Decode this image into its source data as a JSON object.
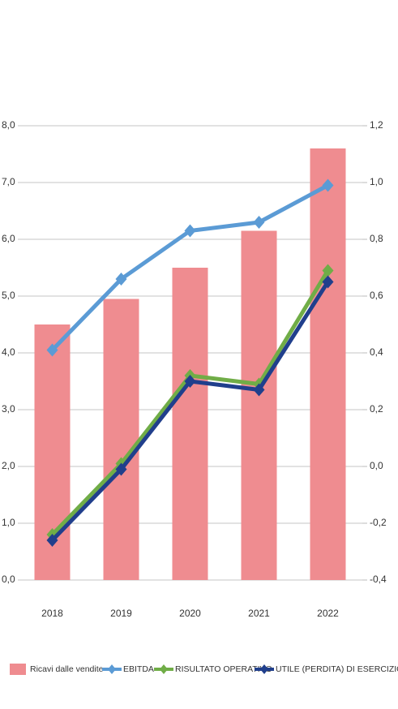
{
  "chart_data": {
    "type": "bar",
    "categories": [
      "2018",
      "2019",
      "2020",
      "2021",
      "2022"
    ],
    "series": [
      {
        "name": "Ricavi dalle vendite",
        "color": "#ef8c90",
        "type": "bar",
        "values": [
          4.5,
          4.95,
          5.5,
          6.15,
          7.6
        ]
      },
      {
        "name": "EBITDA",
        "color": "#5b9bd5",
        "type": "line",
        "axis": "y2",
        "values": [
          0.41,
          0.66,
          0.83,
          0.86,
          0.99
        ]
      },
      {
        "name": "RISULTATO OPERATIVO",
        "color": "#70ad47",
        "type": "line",
        "axis": "y2",
        "values": [
          -0.24,
          0.01,
          0.32,
          0.29,
          0.69
        ]
      },
      {
        "name": "UTILE (PERDITA) DI ESERCIZIO",
        "color": "#203f8c",
        "type": "line",
        "axis": "y2",
        "values": [
          -0.26,
          -0.01,
          0.3,
          0.27,
          0.65
        ]
      }
    ],
    "ylim": [
      0,
      8
    ],
    "yticks": [
      {
        "value": 0,
        "label": "0,0"
      },
      {
        "value": 1,
        "label": "1,0"
      },
      {
        "value": 2,
        "label": "2,0"
      },
      {
        "value": 3,
        "label": "3,0"
      },
      {
        "value": 4,
        "label": "4,0"
      },
      {
        "value": 5,
        "label": "5,0"
      },
      {
        "value": 6,
        "label": "6,0"
      },
      {
        "value": 7,
        "label": "7,0"
      },
      {
        "value": 8,
        "label": "8,0"
      }
    ],
    "y2lim": [
      -0.4,
      1.2
    ],
    "y2ticks": [
      {
        "value": -0.4,
        "label": "-0,4"
      },
      {
        "value": -0.2,
        "label": "-0,2"
      },
      {
        "value": 0,
        "label": "0,0"
      },
      {
        "value": 0.2,
        "label": "0,2"
      },
      {
        "value": 0.4,
        "label": "0,4"
      },
      {
        "value": 0.6,
        "label": "0,6"
      },
      {
        "value": 0.8,
        "label": "0,8"
      },
      {
        "value": 1,
        "label": "1,0"
      },
      {
        "value": 1.2,
        "label": "1,2"
      }
    ],
    "grid": true
  }
}
